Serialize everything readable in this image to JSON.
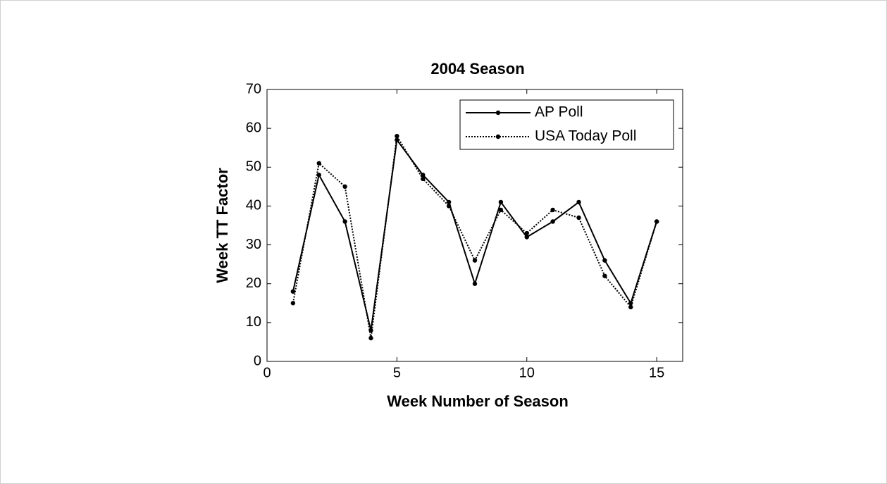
{
  "chart_data": {
    "type": "line",
    "title": "2004 Season",
    "xlabel": "Week Number of Season",
    "ylabel": "Week TT Factor",
    "x": [
      1,
      2,
      3,
      4,
      5,
      6,
      7,
      8,
      9,
      10,
      11,
      12,
      13,
      14,
      15
    ],
    "series": [
      {
        "name": "AP Poll",
        "color": "#000000",
        "style": "solid",
        "values": [
          18,
          48,
          36,
          8,
          57,
          48,
          41,
          20,
          41,
          32,
          36,
          41,
          26,
          15,
          36
        ]
      },
      {
        "name": "USA Today Poll",
        "color": "#000000",
        "style": "dotted",
        "values": [
          15,
          51,
          45,
          6,
          58,
          47,
          40,
          26,
          39,
          33,
          39,
          37,
          22,
          14,
          36
        ]
      }
    ],
    "xlim": [
      0,
      16
    ],
    "xticks": [
      0,
      5,
      10,
      15
    ],
    "ylim": [
      0,
      70
    ],
    "yticks": [
      0,
      10,
      20,
      30,
      40,
      50,
      60,
      70
    ],
    "grid": false,
    "legend": "upper right"
  }
}
